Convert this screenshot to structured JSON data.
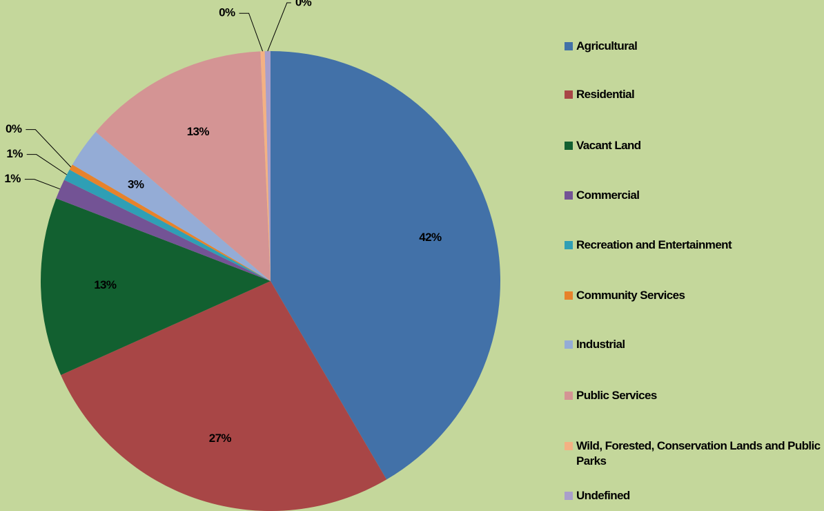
{
  "chart_data": {
    "type": "pie",
    "categories": [
      "Agricultural",
      "Residential",
      "Vacant Land",
      "Commercial",
      "Recreation and Entertainment",
      "Community Services",
      "Industrial",
      "Public Services",
      "Wild, Forested, Conservation Lands and Public Parks",
      "Undefined"
    ],
    "values": [
      41.7,
      26.8,
      12.6,
      1.4,
      0.8,
      0.4,
      2.8,
      13.1,
      0.3,
      0.4
    ],
    "value_labels": [
      "42%",
      "27%",
      "13%",
      "1%",
      "1%",
      "0%",
      "3%",
      "13%",
      "0%",
      "0%"
    ],
    "colors": [
      "#4271a8",
      "#a84646",
      "#126030",
      "#735395",
      "#2f9fb5",
      "#e7822b",
      "#94acd6",
      "#d49494",
      "#f4b183",
      "#a99fcb"
    ],
    "legend": "right"
  }
}
